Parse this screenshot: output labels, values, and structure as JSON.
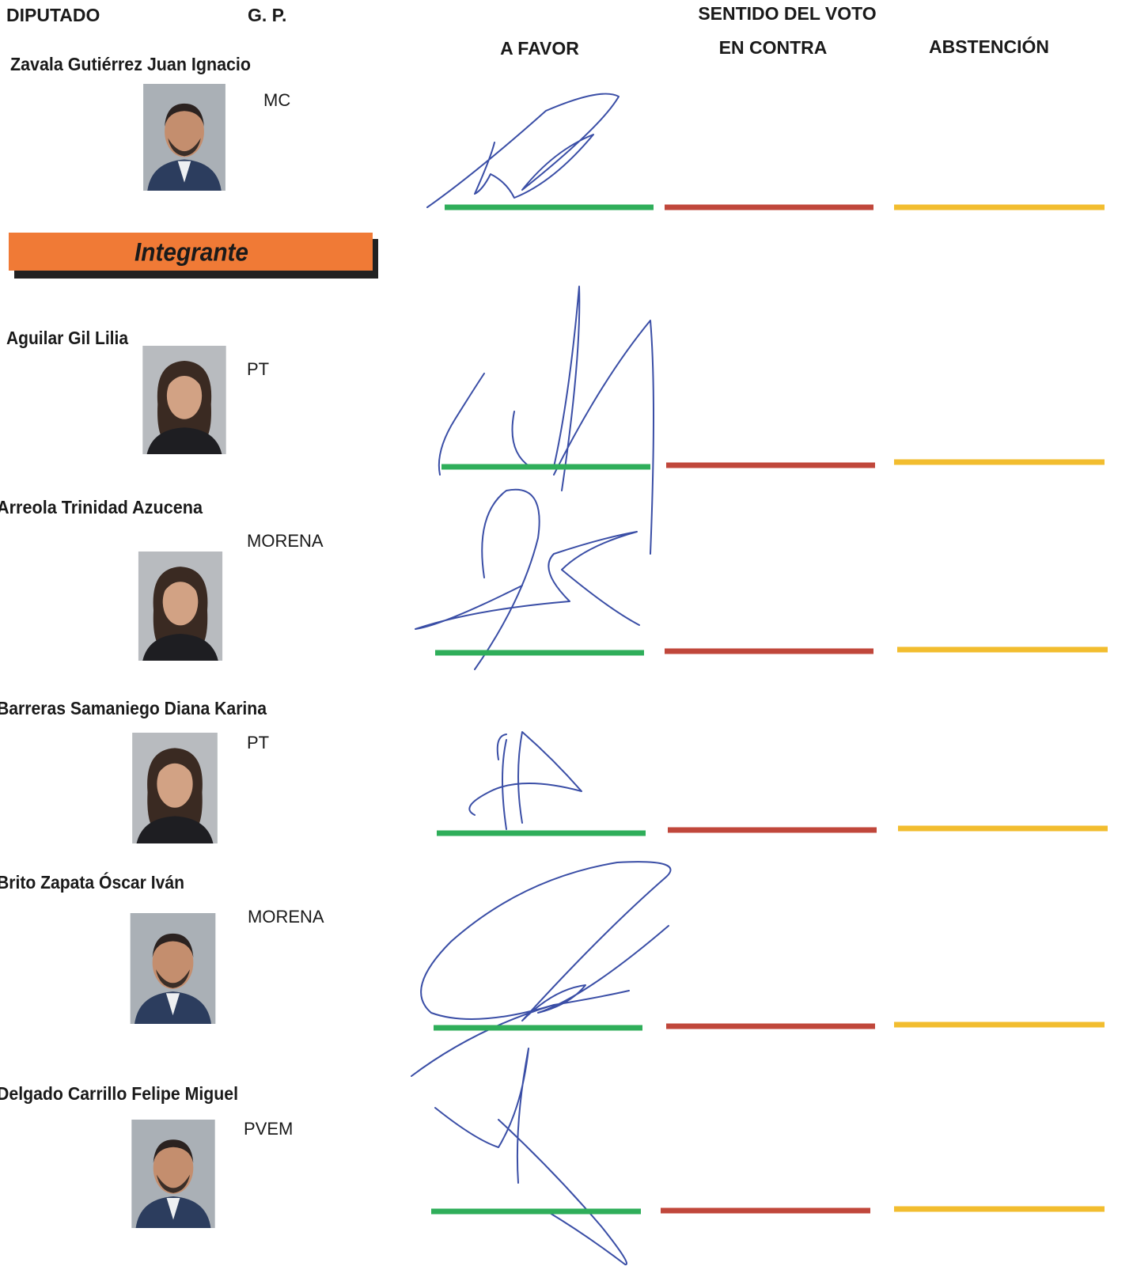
{
  "header": {
    "diputado": "DIPUTADO",
    "gp": "G. P.",
    "sentido": "SENTIDO DEL VOTO",
    "a_favor": "A FAVOR",
    "en_contra": "EN CONTRA",
    "abstencion": "ABSTENCIÓN"
  },
  "president": {
    "name": "Zavala Gutiérrez Juan Ignacio",
    "party": "MC"
  },
  "section": "Integrante",
  "members": [
    {
      "name": "Aguilar Gil Lilia",
      "party": "PT"
    },
    {
      "name": "Arreola Trinidad Azucena",
      "party": "MORENA"
    },
    {
      "name": "Barreras Samaniego Diana Karina",
      "party": "PT"
    },
    {
      "name": "Brito Zapata Óscar Iván",
      "party": "MORENA"
    },
    {
      "name": "Delgado Carrillo Felipe Miguel",
      "party": "PVEM"
    }
  ]
}
